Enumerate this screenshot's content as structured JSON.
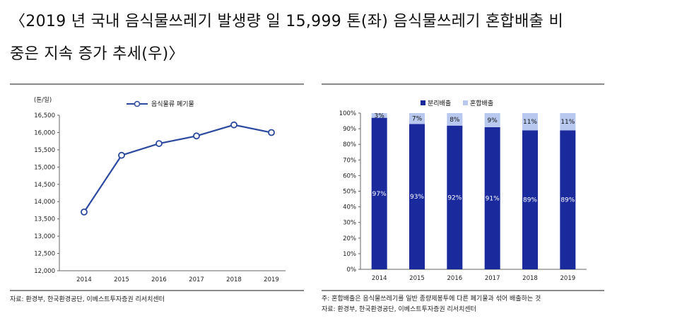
{
  "heading": {
    "line1": "〈2019 년 국내 음식물쓰레기 발생량 일 15,999 톤(좌) 음식물쓰레기 혼합배출 비",
    "line2": "중은 지속 증가 추세(우)〉"
  },
  "colors": {
    "line": "#2b4aa0",
    "separate": "#1a2a9c",
    "mixed": "#b9c8ef",
    "rule": "#8a8a8a"
  },
  "left_notes": {
    "source": "자료: 환경부, 한국환경공단, 이베스트투자증권 리서치센터"
  },
  "right_notes": {
    "footnote": "주: 혼합배출은 음식물쓰레기를 일반 종량제봉투에 다른 폐기물과 섞어 배출하는 것",
    "source": "자료: 환경부, 한국환경공단, 이베스트투자증권 리서치센터"
  },
  "chart_data": [
    {
      "type": "line",
      "ylabel": "(톤/일)",
      "x": [
        "2014",
        "2015",
        "2016",
        "2017",
        "2018",
        "2019"
      ],
      "series": [
        {
          "name": "음식물류 폐기물",
          "values": [
            13700,
            15340,
            15680,
            15900,
            16220,
            15999
          ]
        }
      ],
      "ylim": [
        12000,
        16500
      ],
      "yticks": [
        "12,000",
        "12,500",
        "13,000",
        "13,500",
        "14,000",
        "14,500",
        "15,000",
        "15,500",
        "16,000",
        "16,500"
      ],
      "grid": false,
      "legend": "top"
    },
    {
      "type": "bar",
      "stacked": true,
      "categories": [
        "2014",
        "2015",
        "2016",
        "2017",
        "2018",
        "2019"
      ],
      "series": [
        {
          "name": "분리배출",
          "values": [
            97,
            93,
            92,
            91,
            89,
            89
          ],
          "labels": [
            "97%",
            "93%",
            "92%",
            "91%",
            "89%",
            "89%"
          ]
        },
        {
          "name": "혼합배출",
          "values": [
            3,
            7,
            8,
            9,
            11,
            11
          ],
          "labels": [
            "3%",
            "7%",
            "8%",
            "9%",
            "11%",
            "11%"
          ]
        }
      ],
      "ylim": [
        0,
        100
      ],
      "yticks": [
        "0%",
        "10%",
        "20%",
        "30%",
        "40%",
        "50%",
        "60%",
        "70%",
        "80%",
        "90%",
        "100%"
      ],
      "grid": false,
      "legend": "top"
    }
  ]
}
